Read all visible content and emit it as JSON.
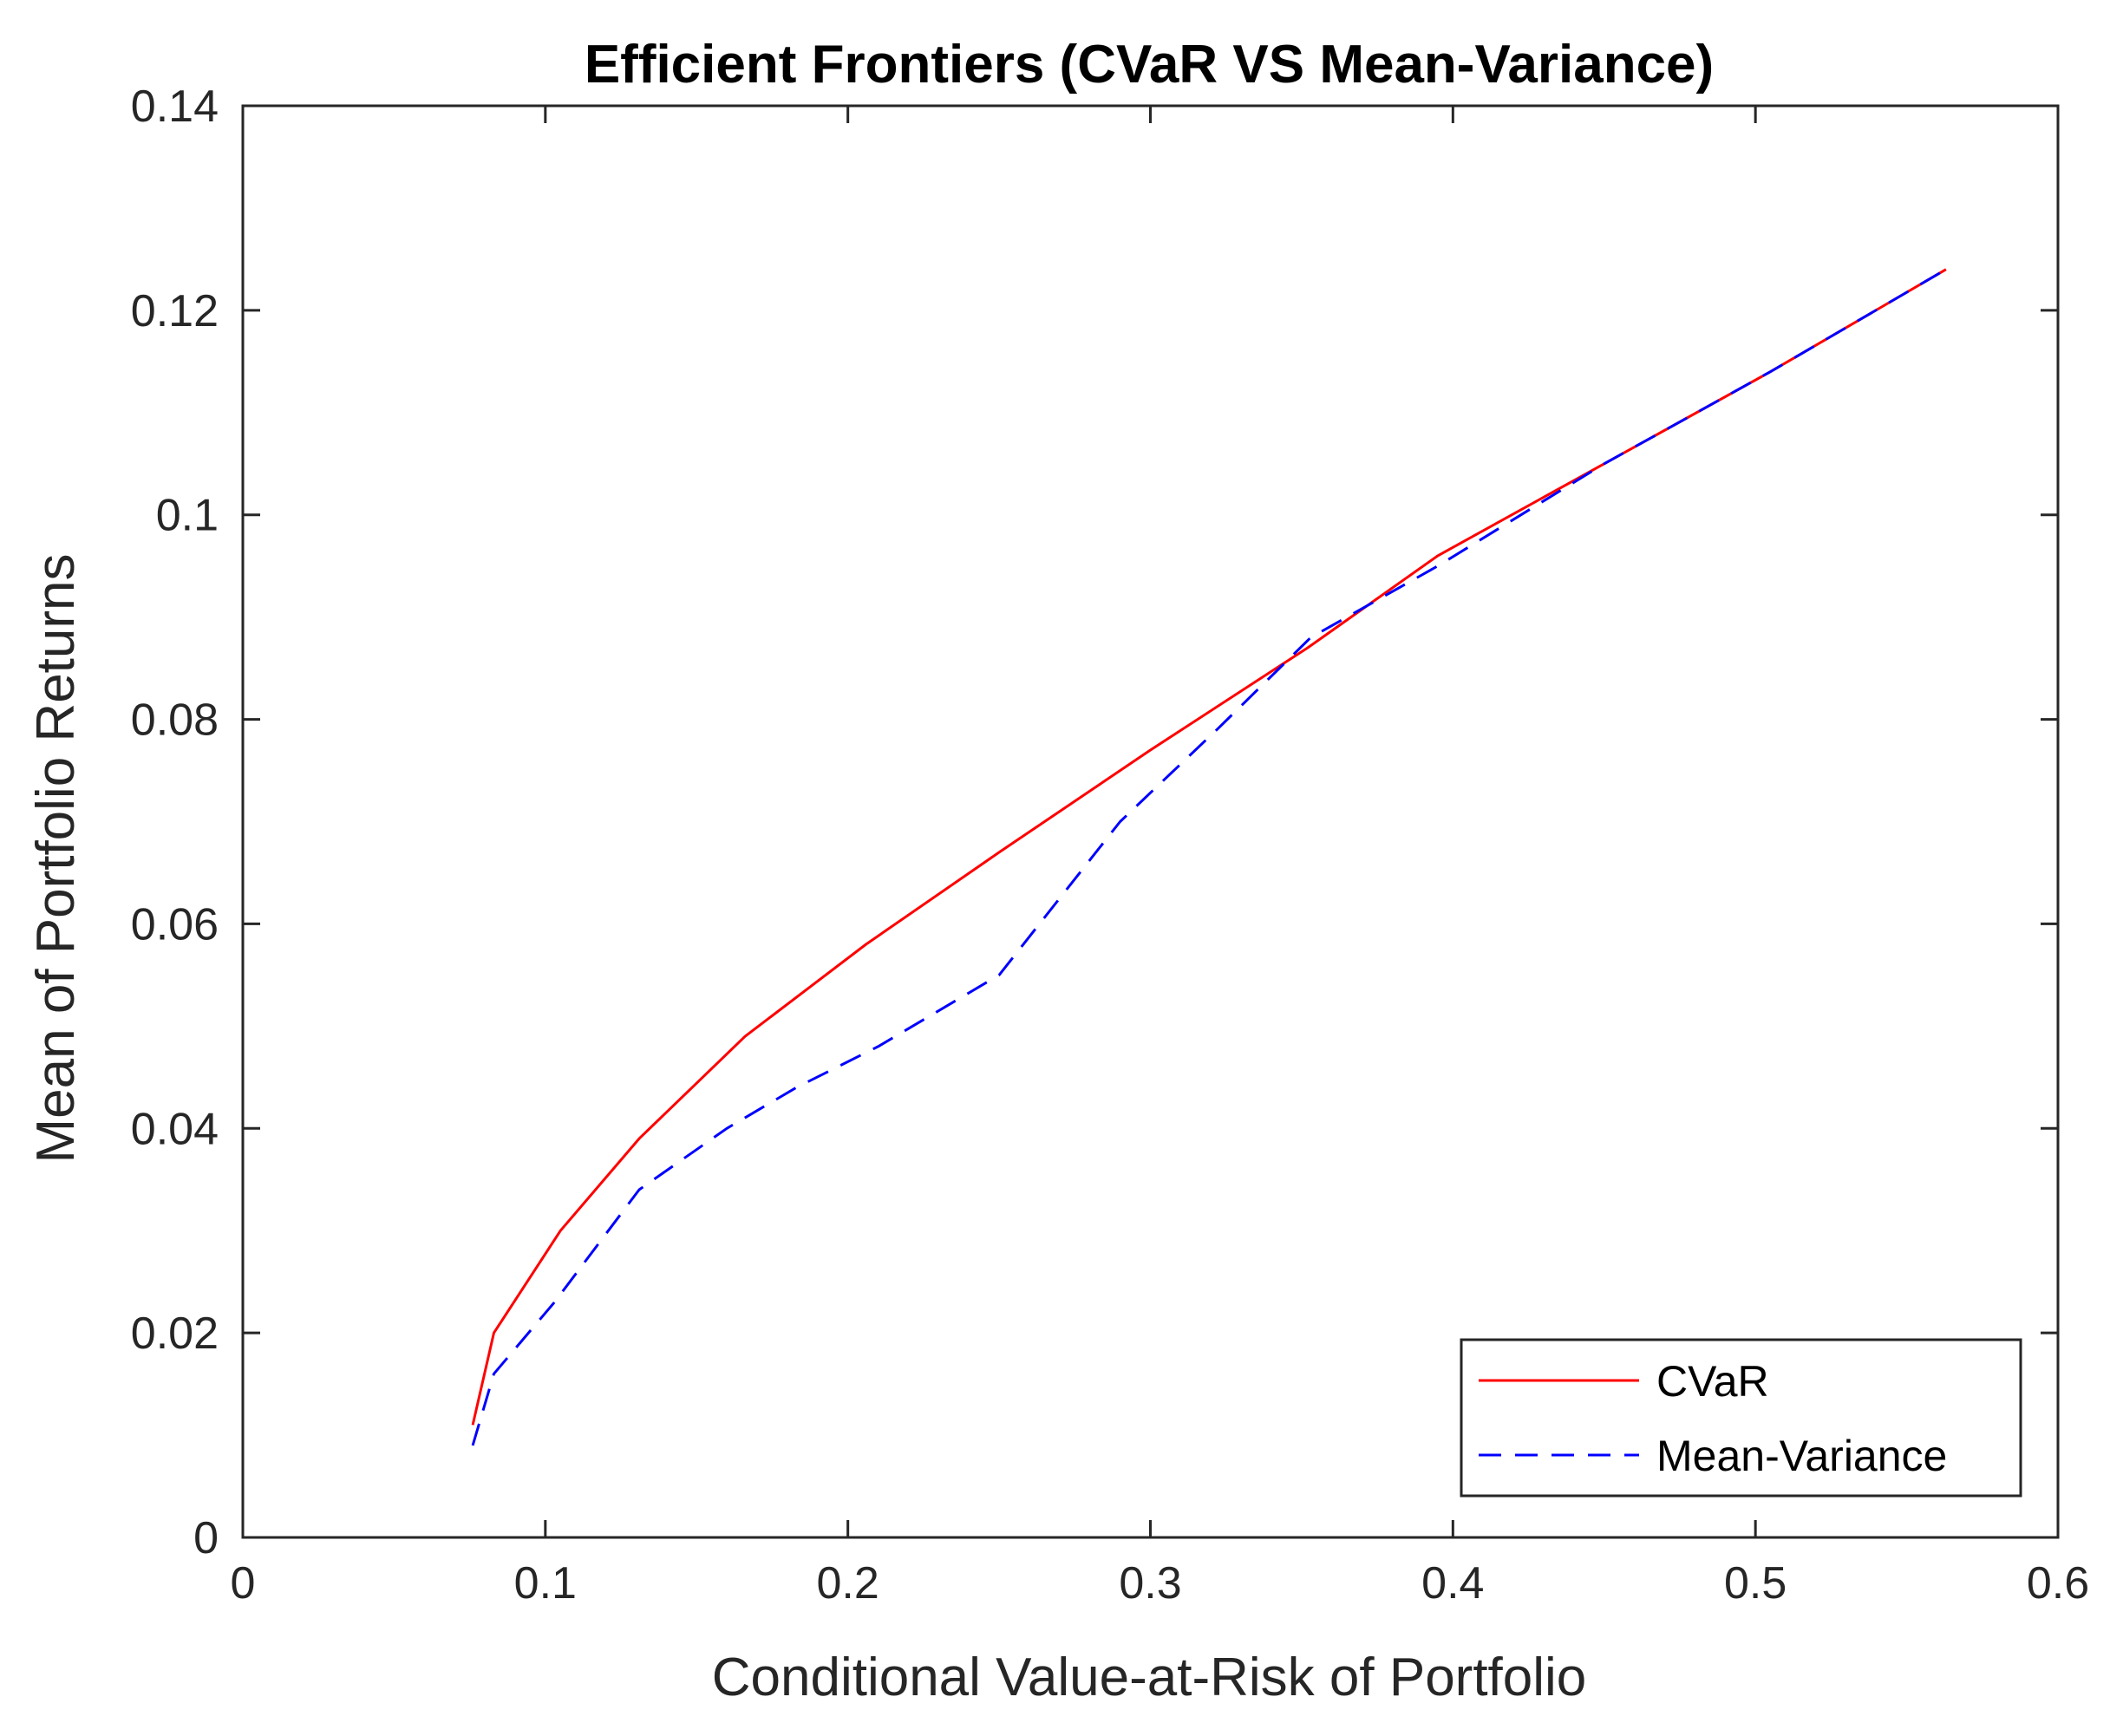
{
  "chart_data": {
    "type": "line",
    "title": "Efficient Frontiers (CVaR VS Mean-Variance)",
    "xlabel": "Conditional Value-at-Risk of Portfolio",
    "ylabel": "Mean of Portfolio Returns",
    "xlim": [
      0,
      0.6
    ],
    "ylim": [
      0,
      0.14
    ],
    "xticks": [
      0,
      0.1,
      0.2,
      0.3,
      0.4,
      0.5,
      0.6
    ],
    "xtick_labels": [
      "0",
      "0.1",
      "0.2",
      "0.3",
      "0.4",
      "0.5",
      "0.6"
    ],
    "yticks": [
      0,
      0.02,
      0.04,
      0.06,
      0.08,
      0.1,
      0.12,
      0.14
    ],
    "ytick_labels": [
      "0",
      "0.02",
      "0.04",
      "0.06",
      "0.08",
      "0.1",
      "0.12",
      "0.14"
    ],
    "grid": false,
    "legend_position": "bottom-right",
    "series": [
      {
        "name": "CVaR",
        "color": "#ff0000",
        "style": "solid",
        "x": [
          0.076,
          0.083,
          0.105,
          0.131,
          0.166,
          0.206,
          0.25,
          0.3,
          0.352,
          0.395,
          0.45,
          0.505,
          0.563
        ],
        "y": [
          0.011,
          0.02,
          0.03,
          0.039,
          0.049,
          0.058,
          0.067,
          0.077,
          0.087,
          0.096,
          0.105,
          0.114,
          0.124
        ]
      },
      {
        "name": "Mean-Variance",
        "color": "#0000ff",
        "style": "dashed",
        "x": [
          0.076,
          0.083,
          0.103,
          0.131,
          0.16,
          0.183,
          0.21,
          0.25,
          0.29,
          0.322,
          0.353,
          0.395,
          0.45,
          0.505,
          0.563
        ],
        "y": [
          0.009,
          0.016,
          0.023,
          0.034,
          0.04,
          0.044,
          0.048,
          0.055,
          0.07,
          0.079,
          0.088,
          0.095,
          0.105,
          0.114,
          0.124
        ]
      }
    ]
  }
}
